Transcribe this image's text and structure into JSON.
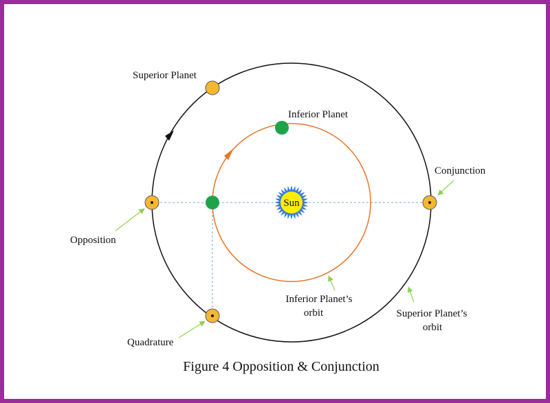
{
  "diagram": {
    "caption": "Figure 4 Opposition & Conjunction",
    "sun_label": "Sun",
    "labels": {
      "superior_planet": "Superior Planet",
      "inferior_planet": "Inferior Planet",
      "conjunction": "Conjunction",
      "opposition": "Opposition",
      "quadrature": "Quadrature",
      "inferior_orbit_line1": "Inferior Planet’s",
      "inferior_orbit_line2": "orbit",
      "superior_orbit_line1": "Superior Planet’s",
      "superior_orbit_line2": "orbit"
    },
    "colors": {
      "frame": "#9a2d9a",
      "superior_orbit": "#111111",
      "inferior_orbit": "#e8742a",
      "superior_planet": "#f5b731",
      "inferior_planet": "#1ea34a",
      "sun_fill": "#ffee00",
      "sun_rays": "#3a7bd5",
      "guide_line": "#6fa8dc",
      "pointer_arrow": "#8fd14f"
    }
  }
}
